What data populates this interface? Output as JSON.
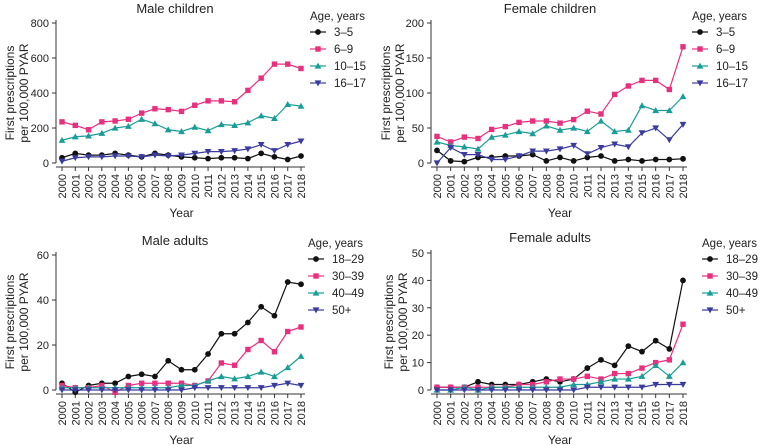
{
  "chart_data": [
    {
      "type": "line",
      "title": "Male children",
      "xlabel": "Year",
      "ylabel": "First prescriptions per 100,000 PYAR",
      "ylim": [
        0,
        800
      ],
      "yticks": [
        0,
        200,
        400,
        600,
        800
      ],
      "legend_title": "Age, years",
      "categories": [
        "2000",
        "2001",
        "2002",
        "2003",
        "2004",
        "2005",
        "2006",
        "2007",
        "2008",
        "2009",
        "2010",
        "2011",
        "2012",
        "2013",
        "2014",
        "2015",
        "2016",
        "2017",
        "2018"
      ],
      "series": [
        {
          "name": "3–5",
          "color": "#111111",
          "marker": "circle",
          "values": [
            30,
            55,
            45,
            45,
            55,
            45,
            35,
            55,
            45,
            35,
            30,
            25,
            30,
            30,
            25,
            55,
            35,
            20,
            40
          ]
        },
        {
          "name": "6–9",
          "color": "#e8307e",
          "marker": "square",
          "values": [
            235,
            215,
            190,
            235,
            240,
            250,
            285,
            310,
            305,
            295,
            330,
            355,
            355,
            350,
            415,
            485,
            565,
            565,
            540
          ]
        },
        {
          "name": "10–15",
          "color": "#1a9d96",
          "marker": "triangle-up",
          "values": [
            130,
            150,
            155,
            170,
            200,
            210,
            250,
            225,
            190,
            180,
            205,
            185,
            220,
            215,
            230,
            270,
            255,
            335,
            325
          ]
        },
        {
          "name": "16–17",
          "color": "#3b3b9e",
          "marker": "triangle-down",
          "values": [
            10,
            30,
            35,
            35,
            40,
            40,
            35,
            45,
            40,
            45,
            55,
            65,
            65,
            70,
            80,
            105,
            70,
            105,
            125
          ]
        }
      ]
    },
    {
      "type": "line",
      "title": "Female children",
      "xlabel": "Year",
      "ylabel": "First prescriptions per 100,000 PYAR",
      "ylim": [
        0,
        200
      ],
      "yticks": [
        0,
        50,
        100,
        150,
        200
      ],
      "legend_title": "Age, years",
      "categories": [
        "2000",
        "2001",
        "2002",
        "2003",
        "2004",
        "2005",
        "2006",
        "2007",
        "2008",
        "2009",
        "2010",
        "2011",
        "2012",
        "2013",
        "2014",
        "2015",
        "2016",
        "2017",
        "2018"
      ],
      "series": [
        {
          "name": "3–5",
          "color": "#111111",
          "marker": "circle",
          "values": [
            18,
            3,
            2,
            8,
            8,
            10,
            10,
            12,
            3,
            8,
            3,
            8,
            10,
            3,
            5,
            3,
            5,
            5,
            6
          ]
        },
        {
          "name": "6–9",
          "color": "#e8307e",
          "marker": "square",
          "values": [
            38,
            30,
            37,
            35,
            48,
            52,
            58,
            60,
            60,
            57,
            62,
            74,
            70,
            98,
            110,
            118,
            118,
            105,
            166
          ]
        },
        {
          "name": "10–15",
          "color": "#1a9d96",
          "marker": "triangle-up",
          "values": [
            30,
            25,
            23,
            20,
            37,
            40,
            45,
            42,
            53,
            47,
            50,
            45,
            60,
            45,
            47,
            82,
            75,
            75,
            95
          ]
        },
        {
          "name": "16–17",
          "color": "#3b3b9e",
          "marker": "triangle-down",
          "values": [
            0,
            22,
            12,
            12,
            5,
            5,
            10,
            17,
            17,
            20,
            25,
            13,
            22,
            27,
            23,
            43,
            50,
            33,
            55
          ]
        }
      ]
    },
    {
      "type": "line",
      "title": "Male adults",
      "xlabel": "Year",
      "ylabel": "First prescriptions per 100,000 PYAR",
      "ylim": [
        0,
        60
      ],
      "yticks": [
        0,
        20,
        40,
        60
      ],
      "legend_title": "Age, years",
      "categories": [
        "2000",
        "2001",
        "2002",
        "2003",
        "2004",
        "2005",
        "2006",
        "2007",
        "2008",
        "2009",
        "2010",
        "2011",
        "2012",
        "2013",
        "2014",
        "2015",
        "2016",
        "2017",
        "2018"
      ],
      "series": [
        {
          "name": "18–29",
          "color": "#111111",
          "marker": "circle",
          "values": [
            3,
            -1,
            2,
            3,
            3,
            6,
            7,
            6,
            13,
            9,
            9,
            16,
            25,
            25,
            30,
            37,
            33,
            48,
            47
          ]
        },
        {
          "name": "30–39",
          "color": "#e8307e",
          "marker": "square",
          "values": [
            2,
            1,
            1,
            2,
            -1,
            2,
            3,
            3,
            3,
            3,
            2,
            4,
            12,
            11,
            18,
            22,
            17,
            26,
            28
          ]
        },
        {
          "name": "40–49",
          "color": "#1a9d96",
          "marker": "triangle-up",
          "values": [
            1,
            1,
            1,
            1,
            1,
            1,
            1,
            1,
            1,
            2,
            2,
            4,
            6,
            5,
            6,
            8,
            6,
            10,
            15
          ]
        },
        {
          "name": "50+",
          "color": "#3b3b9e",
          "marker": "triangle-down",
          "values": [
            0,
            0,
            0,
            0,
            0,
            0,
            0,
            0,
            0,
            0,
            1,
            1,
            1,
            1,
            1,
            1,
            2,
            3,
            2
          ]
        }
      ]
    },
    {
      "type": "line",
      "title": "Female adults",
      "xlabel": "Year",
      "ylabel": "First prescriptions per 100,000 PYAR",
      "ylim": [
        0,
        50
      ],
      "yticks": [
        0,
        10,
        20,
        30,
        40,
        50
      ],
      "legend_title": "Age, years",
      "categories": [
        "2000",
        "2001",
        "2002",
        "2003",
        "2004",
        "2005",
        "2006",
        "2007",
        "2008",
        "2009",
        "2010",
        "2011",
        "2012",
        "2013",
        "2014",
        "2015",
        "2016",
        "2017",
        "2018"
      ],
      "series": [
        {
          "name": "18–29",
          "color": "#111111",
          "marker": "circle",
          "values": [
            1,
            1,
            1,
            3,
            2,
            2,
            2,
            3,
            4,
            3,
            4,
            8,
            11,
            9,
            16,
            14,
            18,
            15,
            40
          ]
        },
        {
          "name": "30–39",
          "color": "#e8307e",
          "marker": "square",
          "values": [
            1,
            1,
            1,
            1,
            1,
            1,
            2,
            2,
            3,
            4,
            4,
            5,
            4,
            6,
            6,
            8,
            10,
            11,
            24
          ]
        },
        {
          "name": "40–49",
          "color": "#1a9d96",
          "marker": "triangle-up",
          "values": [
            0,
            0,
            1,
            0,
            1,
            1,
            1,
            1,
            1,
            1,
            2,
            2,
            3,
            4,
            4,
            5,
            9,
            5,
            10
          ]
        },
        {
          "name": "50+",
          "color": "#3b3b9e",
          "marker": "triangle-down",
          "values": [
            0,
            0,
            0,
            0,
            0,
            0,
            0,
            0,
            0,
            0,
            0,
            1,
            1,
            1,
            1,
            1,
            2,
            2,
            2
          ]
        }
      ]
    }
  ]
}
